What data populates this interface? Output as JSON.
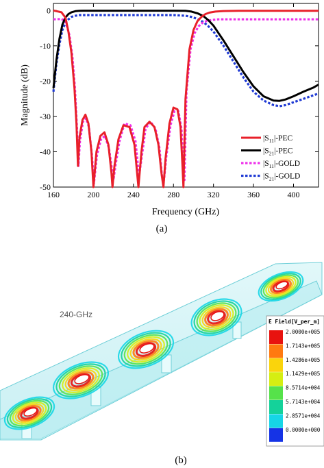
{
  "panel_a": {
    "caption": "(a)",
    "chart_data": {
      "type": "line",
      "xlabel": "Frequency (GHz)",
      "ylabel": "Magnitude (dB)",
      "xlim": [
        160,
        425
      ],
      "ylim": [
        -50,
        2
      ],
      "xticks": [
        160,
        200,
        240,
        280,
        320,
        360,
        400
      ],
      "yticks": [
        0,
        -10,
        -20,
        -30,
        -40,
        -50
      ],
      "grid": false,
      "legend_position": "bottom-right",
      "series": [
        {
          "name": "|S11|-PEC",
          "legend_main": "|S",
          "legend_sub": "11",
          "legend_tail": "|-PEC",
          "color": "#e8202a",
          "style": "solid",
          "x": [
            160,
            168,
            172,
            175,
            178,
            181,
            183,
            184.5,
            186,
            189,
            192,
            195,
            198,
            200,
            203,
            207,
            211,
            215,
            218,
            219,
            221,
            225,
            230,
            236,
            241,
            245,
            248,
            251,
            256,
            261,
            265,
            268,
            270,
            272,
            276,
            280,
            284,
            287,
            289,
            290,
            292,
            296,
            300,
            304,
            308,
            312,
            316,
            322,
            330,
            345,
            360,
            380,
            400,
            420,
            425
          ],
          "y": [
            0,
            -0.5,
            -2,
            -6,
            -12,
            -22,
            -32,
            -44,
            -36,
            -31,
            -29.5,
            -32,
            -40,
            -50,
            -40,
            -35.5,
            -34.5,
            -38,
            -46,
            -50,
            -44,
            -36.5,
            -32.5,
            -33,
            -38,
            -50,
            -40,
            -33,
            -31.5,
            -33,
            -38,
            -46,
            -50,
            -42,
            -32,
            -27.5,
            -28,
            -33,
            -44,
            -50,
            -25,
            -11,
            -5.5,
            -3,
            -1.8,
            -1,
            -0.6,
            -0.3,
            -0.15,
            -0.1,
            -0.1,
            -0.1,
            -0.1,
            -0.1,
            -0.1
          ]
        },
        {
          "name": "|S21|-PEC",
          "legend_main": "|S",
          "legend_sub": "21",
          "legend_tail": "|-PEC",
          "color": "#000000",
          "style": "solid",
          "x": [
            160,
            163,
            166,
            169,
            172,
            175,
            178,
            182,
            186,
            190,
            200,
            240,
            280,
            292,
            298,
            304,
            310,
            315,
            320,
            330,
            340,
            350,
            360,
            370,
            380,
            386,
            392,
            400,
            410,
            420,
            425
          ],
          "y": [
            -22,
            -14,
            -8,
            -4,
            -2,
            -1,
            -0.5,
            -0.2,
            -0.1,
            -0.05,
            -0.05,
            -0.05,
            -0.05,
            -0.1,
            -0.3,
            -0.8,
            -1.6,
            -2.8,
            -4.3,
            -8.5,
            -13,
            -17.5,
            -21.5,
            -24.3,
            -25.5,
            -25.6,
            -25.2,
            -24.3,
            -23,
            -21.8,
            -21
          ]
        },
        {
          "name": "|S11|-GOLD",
          "legend_main": "|S",
          "legend_sub": "11",
          "legend_tail": "|-GOLD",
          "color": "#ee30ea",
          "style": "dotted",
          "x": [
            160,
            168,
            172,
            176,
            179,
            181.5,
            183.5,
            185,
            186.5,
            189.5,
            192.5,
            195.5,
            198.5,
            200.5,
            203.5,
            207.5,
            211.5,
            215.5,
            218.5,
            220,
            222,
            226,
            231,
            237,
            242,
            245.5,
            249,
            252,
            257,
            262,
            266,
            268.5,
            270.5,
            273,
            277,
            281,
            285,
            288,
            290,
            291,
            293,
            297,
            301,
            305,
            309,
            313,
            318,
            325,
            340,
            360,
            390,
            425
          ],
          "y": [
            -2.5,
            -2.4,
            -3,
            -7,
            -13,
            -22,
            -33,
            -44,
            -37,
            -31.5,
            -30.5,
            -33,
            -41,
            -49,
            -41,
            -36.5,
            -35.5,
            -39,
            -45,
            -48,
            -44,
            -37,
            -32,
            -32.5,
            -37,
            -47,
            -40,
            -33.5,
            -31.5,
            -33.5,
            -39,
            -47,
            -48,
            -41,
            -32.5,
            -28.5,
            -28.5,
            -33.5,
            -44,
            -48,
            -23,
            -11,
            -6.5,
            -4.5,
            -3.5,
            -3,
            -2.7,
            -2.5,
            -2.5,
            -2.5,
            -2.5,
            -2.5
          ]
        },
        {
          "name": "|S21|-GOLD",
          "legend_main": "|S",
          "legend_sub": "21",
          "legend_tail": "|-GOLD",
          "color": "#1f3ad4",
          "style": "dotted",
          "x": [
            160,
            163,
            166,
            169,
            172,
            175,
            178,
            182,
            186,
            190,
            200,
            240,
            280,
            292,
            298,
            304,
            310,
            315,
            320,
            330,
            340,
            350,
            360,
            370,
            380,
            386,
            392,
            400,
            410,
            420,
            425
          ],
          "y": [
            -23,
            -15,
            -9.5,
            -5.5,
            -3.5,
            -2.5,
            -1.8,
            -1.5,
            -1.3,
            -1.3,
            -1.3,
            -1.3,
            -1.3,
            -1.5,
            -1.8,
            -2.4,
            -3.3,
            -4.5,
            -6,
            -10,
            -14.5,
            -19,
            -23,
            -25.5,
            -26.8,
            -27.1,
            -26.8,
            -26,
            -25,
            -24,
            -23.5
          ]
        }
      ]
    }
  },
  "panel_b": {
    "caption": "(b)",
    "frequency_label": "240-GHz",
    "legend_title": "E Field[V_per_m]",
    "scale": [
      {
        "label": "2.0000e+005",
        "color": "#e8120f"
      },
      {
        "label": "1.7143e+005",
        "color": "#ff7a10"
      },
      {
        "label": "1.4286e+005",
        "color": "#fad40c"
      },
      {
        "label": "1.1429e+005",
        "color": "#d5ee12"
      },
      {
        "label": "8.5714e+004",
        "color": "#56e24a"
      },
      {
        "label": "5.7143e+004",
        "color": "#14d29a"
      },
      {
        "label": "2.8571e+004",
        "color": "#16d6e6"
      },
      {
        "label": "0.0000e+000",
        "color": "#1533e6"
      }
    ]
  }
}
